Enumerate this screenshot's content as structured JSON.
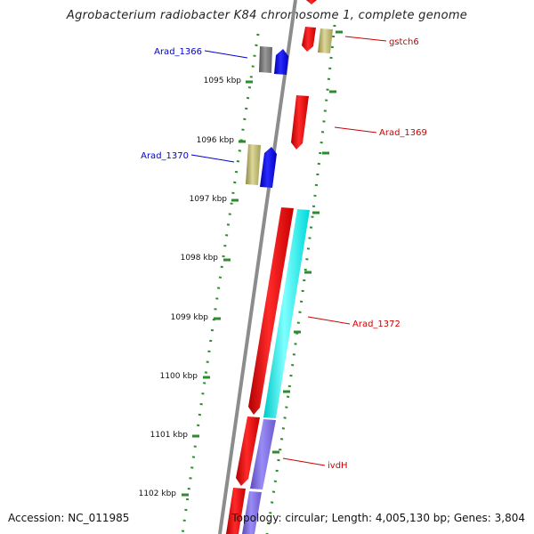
{
  "title": "Agrobacterium radiobacter K84 chromosome 1, complete genome",
  "footer": {
    "accession": "Accession: NC_011985",
    "topology": "Topology: circular; Length: 4,005,130 bp; Genes: 3,804"
  },
  "ticks": [
    {
      "label": "1095 kbp"
    },
    {
      "label": "1096 kbp"
    },
    {
      "label": "1097 kbp"
    },
    {
      "label": "1098 kbp"
    },
    {
      "label": "1099 kbp"
    },
    {
      "label": "1100 kbp"
    },
    {
      "label": "1101 kbp"
    },
    {
      "label": "1102 kbp"
    }
  ],
  "gene_labels": [
    {
      "id": "gstch6",
      "text": "gstch6",
      "color": "#cc0000"
    },
    {
      "id": "arad_1366",
      "text": "Arad_1366",
      "color": "#0000cc"
    },
    {
      "id": "arad_1369",
      "text": "Arad_1369",
      "color": "#cc0000"
    },
    {
      "id": "arad_1370",
      "text": "Arad_1370",
      "color": "#0000cc"
    },
    {
      "id": "arad_1372",
      "text": "Arad_1372",
      "color": "#cc0000"
    },
    {
      "id": "ivdh",
      "text": "ivdH",
      "color": "#cc0000"
    }
  ],
  "colors": {
    "backbone": "#8c8c8c",
    "tick": "#2e8b2e",
    "forward_red": "#ff0000",
    "reverse_blue": "#0000ff",
    "gray_feature": "#777777",
    "tan_feature": "#bdb76b",
    "cyan_feature": "#00ffff",
    "purple_feature": "#7b68ee"
  }
}
